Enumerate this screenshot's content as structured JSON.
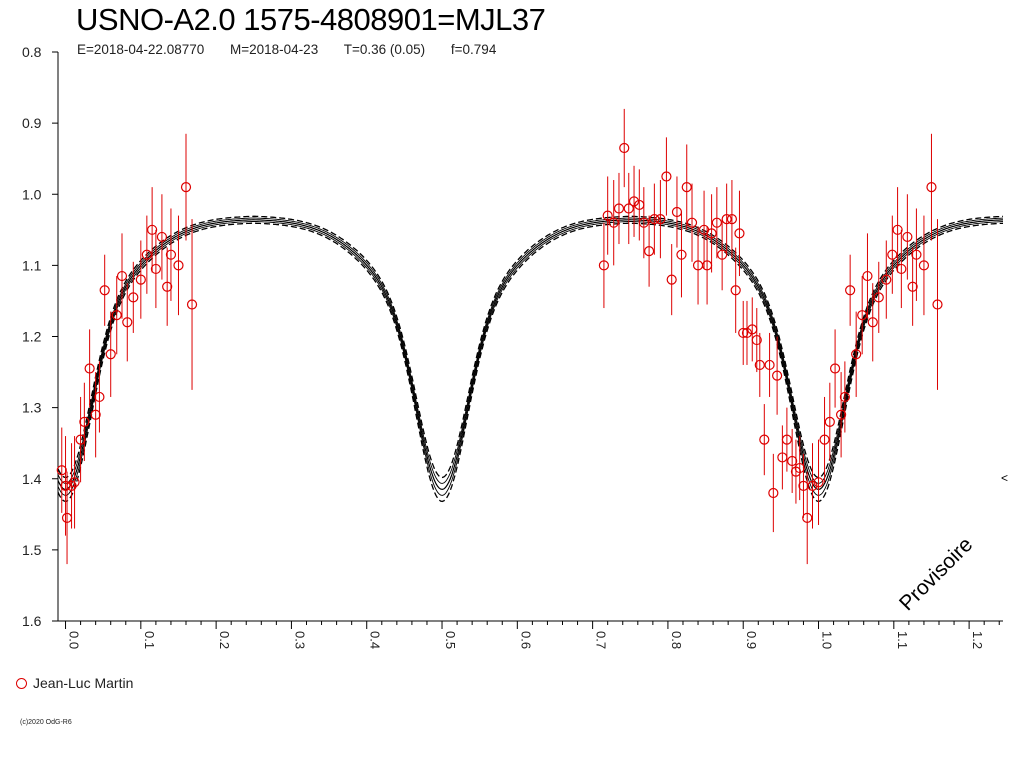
{
  "header": {
    "title": "USNO-A2.0 1575-4808901=MJL37",
    "epoch": "E=2018-04-22.08770",
    "minimum": "M=2018-04-23",
    "timing": "T=0.36 (0.05)",
    "fill": "f=0.794"
  },
  "legend": {
    "observer": "Jean-Luc Martin"
  },
  "copyright": "(c)2020 OdG-R6",
  "watermark": "Provisoire",
  "edge_mark": "<",
  "colors": {
    "data": "#dd0000",
    "model": "#000000",
    "axis": "#000000"
  },
  "chart_data": {
    "type": "scatter",
    "title": "USNO-A2.0 1575-4808901=MJL37",
    "xlabel": "",
    "ylabel": "",
    "xlim": [
      -0.01,
      1.245
    ],
    "ylim": [
      0.8,
      1.6
    ],
    "y_inverted": true,
    "x_ticks": [
      "0.0",
      "0.1",
      "0.2",
      "0.3",
      "0.4",
      "0.5",
      "0.6",
      "0.7",
      "0.8",
      "0.9",
      "1.0",
      "1.1",
      "1.2"
    ],
    "y_ticks": [
      "0.8",
      "0.9",
      "1.0",
      "1.1",
      "1.2",
      "1.3",
      "1.4",
      "1.5",
      "1.6"
    ],
    "grid": false,
    "legend_position": "bottom-left",
    "model": {
      "max_level": 1.035,
      "primary_min": 1.415,
      "secondary_min": 1.415,
      "envelope": 0.012,
      "minimum_phases": [
        0.0,
        0.5,
        1.0
      ]
    },
    "series": [
      {
        "name": "Jean-Luc Martin",
        "points": [
          [
            -0.005,
            1.388,
            0.06
          ],
          [
            0.0,
            1.41,
            0.07
          ],
          [
            0.002,
            1.455,
            0.065
          ],
          [
            0.008,
            1.41,
            0.06
          ],
          [
            0.012,
            1.405,
            0.065
          ],
          [
            0.02,
            1.345,
            0.06
          ],
          [
            0.025,
            1.32,
            0.055
          ],
          [
            0.032,
            1.245,
            0.055
          ],
          [
            0.04,
            1.31,
            0.06
          ],
          [
            0.045,
            1.285,
            0.05
          ],
          [
            0.052,
            1.135,
            0.05
          ],
          [
            0.06,
            1.225,
            0.06
          ],
          [
            0.068,
            1.17,
            0.055
          ],
          [
            0.075,
            1.115,
            0.06
          ],
          [
            0.082,
            1.18,
            0.055
          ],
          [
            0.09,
            1.145,
            0.05
          ],
          [
            0.1,
            1.12,
            0.055
          ],
          [
            0.108,
            1.085,
            0.055
          ],
          [
            0.115,
            1.05,
            0.06
          ],
          [
            0.12,
            1.105,
            0.055
          ],
          [
            0.128,
            1.06,
            0.06
          ],
          [
            0.135,
            1.13,
            0.055
          ],
          [
            0.14,
            1.085,
            0.065
          ],
          [
            0.15,
            1.1,
            0.07
          ],
          [
            0.16,
            0.99,
            0.075
          ],
          [
            0.168,
            1.155,
            0.12
          ],
          [
            0.715,
            1.1,
            0.06
          ],
          [
            0.72,
            1.03,
            0.055
          ],
          [
            0.728,
            1.04,
            0.06
          ],
          [
            0.735,
            1.02,
            0.05
          ],
          [
            0.742,
            0.935,
            0.055
          ],
          [
            0.748,
            1.02,
            0.05
          ],
          [
            0.755,
            1.01,
            0.05
          ],
          [
            0.762,
            1.015,
            0.05
          ],
          [
            0.768,
            1.04,
            0.05
          ],
          [
            0.775,
            1.08,
            0.05
          ],
          [
            0.782,
            1.035,
            0.05
          ],
          [
            0.79,
            1.035,
            0.055
          ],
          [
            0.798,
            0.975,
            0.055
          ],
          [
            0.805,
            1.12,
            0.05
          ],
          [
            0.812,
            1.025,
            0.05
          ],
          [
            0.818,
            1.085,
            0.06
          ],
          [
            0.825,
            0.99,
            0.06
          ],
          [
            0.832,
            1.04,
            0.055
          ],
          [
            0.84,
            1.1,
            0.055
          ],
          [
            0.848,
            1.05,
            0.055
          ],
          [
            0.852,
            1.1,
            0.055
          ],
          [
            0.858,
            1.055,
            0.055
          ],
          [
            0.865,
            1.04,
            0.05
          ],
          [
            0.872,
            1.085,
            0.05
          ],
          [
            0.878,
            1.035,
            0.05
          ],
          [
            0.885,
            1.035,
            0.055
          ],
          [
            0.89,
            1.135,
            0.06
          ],
          [
            0.895,
            1.055,
            0.06
          ],
          [
            0.9,
            1.195,
            0.045
          ],
          [
            0.905,
            1.195,
            0.045
          ],
          [
            0.912,
            1.19,
            0.045
          ],
          [
            0.918,
            1.205,
            0.045
          ],
          [
            0.922,
            1.24,
            0.045
          ],
          [
            0.928,
            1.345,
            0.05
          ],
          [
            0.935,
            1.24,
            0.045
          ],
          [
            0.94,
            1.42,
            0.055
          ],
          [
            0.945,
            1.255,
            0.055
          ],
          [
            0.952,
            1.37,
            0.045
          ],
          [
            0.958,
            1.345,
            0.045
          ],
          [
            0.965,
            1.375,
            0.045
          ],
          [
            0.97,
            1.39,
            0.045
          ],
          [
            0.975,
            1.385,
            0.045
          ],
          [
            0.98,
            1.41,
            0.045
          ],
          [
            0.985,
            1.455,
            0.065
          ],
          [
            0.992,
            1.41,
            0.06
          ],
          [
            1.0,
            1.405,
            0.06
          ],
          [
            1.008,
            1.345,
            0.06
          ],
          [
            1.015,
            1.32,
            0.055
          ],
          [
            1.022,
            1.245,
            0.055
          ],
          [
            1.03,
            1.31,
            0.06
          ],
          [
            1.035,
            1.285,
            0.05
          ],
          [
            1.042,
            1.135,
            0.05
          ],
          [
            1.05,
            1.225,
            0.06
          ],
          [
            1.058,
            1.17,
            0.055
          ],
          [
            1.065,
            1.115,
            0.06
          ],
          [
            1.072,
            1.18,
            0.055
          ],
          [
            1.08,
            1.145,
            0.05
          ],
          [
            1.09,
            1.12,
            0.055
          ],
          [
            1.098,
            1.085,
            0.055
          ],
          [
            1.105,
            1.05,
            0.06
          ],
          [
            1.11,
            1.105,
            0.055
          ],
          [
            1.118,
            1.06,
            0.06
          ],
          [
            1.125,
            1.13,
            0.055
          ],
          [
            1.13,
            1.085,
            0.065
          ],
          [
            1.14,
            1.1,
            0.07
          ],
          [
            1.15,
            0.99,
            0.075
          ],
          [
            1.158,
            1.155,
            0.12
          ]
        ]
      }
    ]
  }
}
